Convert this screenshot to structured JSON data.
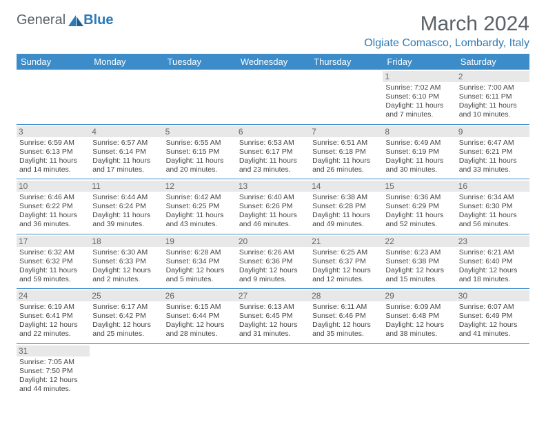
{
  "brand": {
    "general": "General",
    "blue": "Blue"
  },
  "title": "March 2024",
  "location": "Olgiate Comasco, Lombardy, Italy",
  "colors": {
    "header_bg": "#3b8cc9",
    "header_text": "#ffffff",
    "accent": "#2a7ab8",
    "daynum_bg": "#e8e8e8",
    "text": "#444444"
  },
  "day_headers": [
    "Sunday",
    "Monday",
    "Tuesday",
    "Wednesday",
    "Thursday",
    "Friday",
    "Saturday"
  ],
  "weeks": [
    [
      null,
      null,
      null,
      null,
      null,
      {
        "n": "1",
        "sr": "Sunrise: 7:02 AM",
        "ss": "Sunset: 6:10 PM",
        "dl": "Daylight: 11 hours and 7 minutes."
      },
      {
        "n": "2",
        "sr": "Sunrise: 7:00 AM",
        "ss": "Sunset: 6:11 PM",
        "dl": "Daylight: 11 hours and 10 minutes."
      }
    ],
    [
      {
        "n": "3",
        "sr": "Sunrise: 6:59 AM",
        "ss": "Sunset: 6:13 PM",
        "dl": "Daylight: 11 hours and 14 minutes."
      },
      {
        "n": "4",
        "sr": "Sunrise: 6:57 AM",
        "ss": "Sunset: 6:14 PM",
        "dl": "Daylight: 11 hours and 17 minutes."
      },
      {
        "n": "5",
        "sr": "Sunrise: 6:55 AM",
        "ss": "Sunset: 6:15 PM",
        "dl": "Daylight: 11 hours and 20 minutes."
      },
      {
        "n": "6",
        "sr": "Sunrise: 6:53 AM",
        "ss": "Sunset: 6:17 PM",
        "dl": "Daylight: 11 hours and 23 minutes."
      },
      {
        "n": "7",
        "sr": "Sunrise: 6:51 AM",
        "ss": "Sunset: 6:18 PM",
        "dl": "Daylight: 11 hours and 26 minutes."
      },
      {
        "n": "8",
        "sr": "Sunrise: 6:49 AM",
        "ss": "Sunset: 6:19 PM",
        "dl": "Daylight: 11 hours and 30 minutes."
      },
      {
        "n": "9",
        "sr": "Sunrise: 6:47 AM",
        "ss": "Sunset: 6:21 PM",
        "dl": "Daylight: 11 hours and 33 minutes."
      }
    ],
    [
      {
        "n": "10",
        "sr": "Sunrise: 6:46 AM",
        "ss": "Sunset: 6:22 PM",
        "dl": "Daylight: 11 hours and 36 minutes."
      },
      {
        "n": "11",
        "sr": "Sunrise: 6:44 AM",
        "ss": "Sunset: 6:24 PM",
        "dl": "Daylight: 11 hours and 39 minutes."
      },
      {
        "n": "12",
        "sr": "Sunrise: 6:42 AM",
        "ss": "Sunset: 6:25 PM",
        "dl": "Daylight: 11 hours and 43 minutes."
      },
      {
        "n": "13",
        "sr": "Sunrise: 6:40 AM",
        "ss": "Sunset: 6:26 PM",
        "dl": "Daylight: 11 hours and 46 minutes."
      },
      {
        "n": "14",
        "sr": "Sunrise: 6:38 AM",
        "ss": "Sunset: 6:28 PM",
        "dl": "Daylight: 11 hours and 49 minutes."
      },
      {
        "n": "15",
        "sr": "Sunrise: 6:36 AM",
        "ss": "Sunset: 6:29 PM",
        "dl": "Daylight: 11 hours and 52 minutes."
      },
      {
        "n": "16",
        "sr": "Sunrise: 6:34 AM",
        "ss": "Sunset: 6:30 PM",
        "dl": "Daylight: 11 hours and 56 minutes."
      }
    ],
    [
      {
        "n": "17",
        "sr": "Sunrise: 6:32 AM",
        "ss": "Sunset: 6:32 PM",
        "dl": "Daylight: 11 hours and 59 minutes."
      },
      {
        "n": "18",
        "sr": "Sunrise: 6:30 AM",
        "ss": "Sunset: 6:33 PM",
        "dl": "Daylight: 12 hours and 2 minutes."
      },
      {
        "n": "19",
        "sr": "Sunrise: 6:28 AM",
        "ss": "Sunset: 6:34 PM",
        "dl": "Daylight: 12 hours and 5 minutes."
      },
      {
        "n": "20",
        "sr": "Sunrise: 6:26 AM",
        "ss": "Sunset: 6:36 PM",
        "dl": "Daylight: 12 hours and 9 minutes."
      },
      {
        "n": "21",
        "sr": "Sunrise: 6:25 AM",
        "ss": "Sunset: 6:37 PM",
        "dl": "Daylight: 12 hours and 12 minutes."
      },
      {
        "n": "22",
        "sr": "Sunrise: 6:23 AM",
        "ss": "Sunset: 6:38 PM",
        "dl": "Daylight: 12 hours and 15 minutes."
      },
      {
        "n": "23",
        "sr": "Sunrise: 6:21 AM",
        "ss": "Sunset: 6:40 PM",
        "dl": "Daylight: 12 hours and 18 minutes."
      }
    ],
    [
      {
        "n": "24",
        "sr": "Sunrise: 6:19 AM",
        "ss": "Sunset: 6:41 PM",
        "dl": "Daylight: 12 hours and 22 minutes."
      },
      {
        "n": "25",
        "sr": "Sunrise: 6:17 AM",
        "ss": "Sunset: 6:42 PM",
        "dl": "Daylight: 12 hours and 25 minutes."
      },
      {
        "n": "26",
        "sr": "Sunrise: 6:15 AM",
        "ss": "Sunset: 6:44 PM",
        "dl": "Daylight: 12 hours and 28 minutes."
      },
      {
        "n": "27",
        "sr": "Sunrise: 6:13 AM",
        "ss": "Sunset: 6:45 PM",
        "dl": "Daylight: 12 hours and 31 minutes."
      },
      {
        "n": "28",
        "sr": "Sunrise: 6:11 AM",
        "ss": "Sunset: 6:46 PM",
        "dl": "Daylight: 12 hours and 35 minutes."
      },
      {
        "n": "29",
        "sr": "Sunrise: 6:09 AM",
        "ss": "Sunset: 6:48 PM",
        "dl": "Daylight: 12 hours and 38 minutes."
      },
      {
        "n": "30",
        "sr": "Sunrise: 6:07 AM",
        "ss": "Sunset: 6:49 PM",
        "dl": "Daylight: 12 hours and 41 minutes."
      }
    ],
    [
      {
        "n": "31",
        "sr": "Sunrise: 7:05 AM",
        "ss": "Sunset: 7:50 PM",
        "dl": "Daylight: 12 hours and 44 minutes."
      },
      null,
      null,
      null,
      null,
      null,
      null
    ]
  ]
}
